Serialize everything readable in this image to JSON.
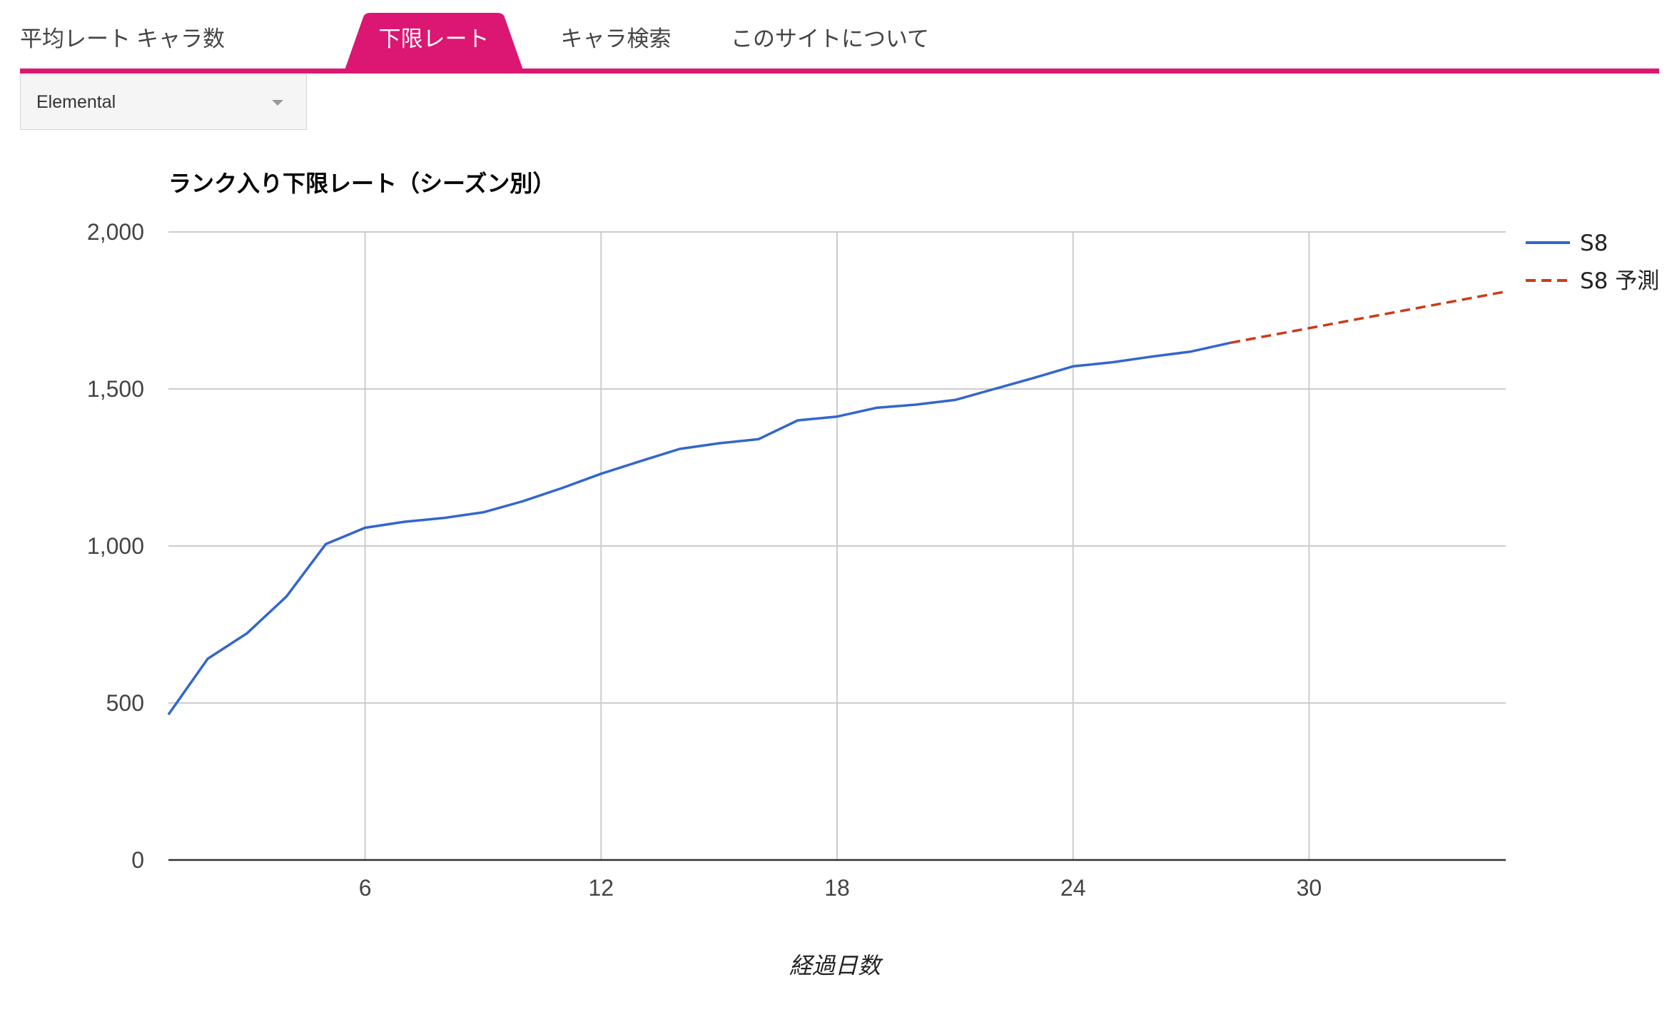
{
  "tabs": [
    {
      "label": "平均レート",
      "active": false
    },
    {
      "label": "キャラ数",
      "active": false
    },
    {
      "label": "下限レート",
      "active": true
    },
    {
      "label": "キャラ検索",
      "active": false
    },
    {
      "label": "このサイトについて",
      "active": false
    }
  ],
  "dropdown": {
    "value": "Elemental"
  },
  "colors": {
    "accent": "#dc1673",
    "series_actual": "#3366cc",
    "series_forecast": "#cc3a1a",
    "grid": "#cccccc"
  },
  "chart_data": {
    "type": "line",
    "title": "ランク入り下限レート（シーズン別）",
    "xlabel": "経過日数",
    "ylabel": "",
    "xlim": [
      1,
      35
    ],
    "ylim": [
      0,
      2000
    ],
    "x_ticks": [
      "6",
      "12",
      "18",
      "24",
      "30"
    ],
    "x_tick_values": [
      6,
      12,
      18,
      24,
      30
    ],
    "y_ticks": [
      "0",
      "500",
      "1,000",
      "1,500",
      "2,000"
    ],
    "y_tick_values": [
      0,
      500,
      1000,
      1500,
      2000
    ],
    "grid": true,
    "legend_position": "right",
    "series": [
      {
        "name": "S8",
        "style": "solid",
        "x": [
          1,
          2,
          3,
          4,
          5,
          6,
          7,
          8,
          9,
          10,
          11,
          12,
          13,
          14,
          15,
          16,
          17,
          18,
          19,
          20,
          21,
          22,
          23,
          24,
          25,
          26,
          27,
          28
        ],
        "y": [
          463,
          641,
          722,
          839,
          1006,
          1058,
          1077,
          1089,
          1107,
          1142,
          1184,
          1230,
          1270,
          1309,
          1327,
          1340,
          1400,
          1412,
          1440,
          1450,
          1465,
          1500,
          1535,
          1572,
          1585,
          1603,
          1619,
          1647
        ]
      },
      {
        "name": "S8 予測",
        "style": "dashed",
        "x": [
          28,
          35
        ],
        "y": [
          1647,
          1810
        ]
      }
    ]
  }
}
